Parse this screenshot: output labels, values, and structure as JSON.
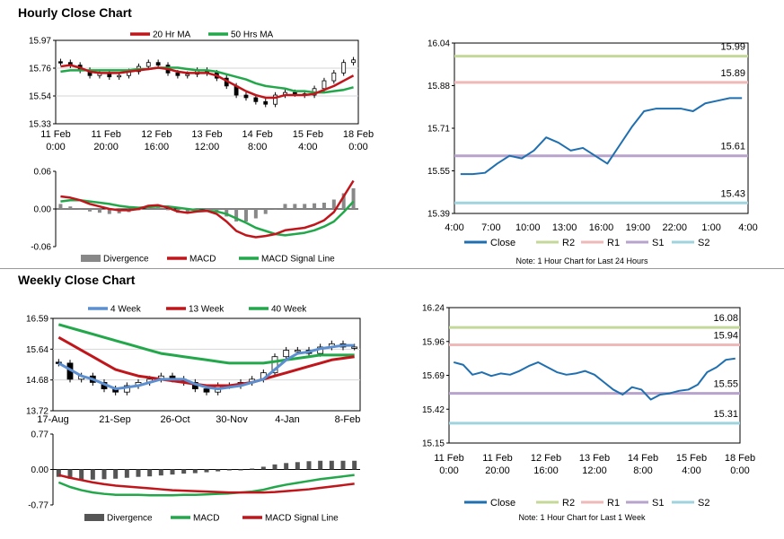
{
  "sections": {
    "hourly_title": "Hourly Close Chart",
    "weekly_title": "Weekly Close Chart"
  },
  "colors": {
    "ma20": "#c0161b",
    "ma50": "#22a84a",
    "close": "#1f6fb0",
    "r2": "#c4d89a",
    "r1": "#efb9b9",
    "s1": "#b7a3cc",
    "s2": "#9fd3de",
    "w4": "#5b8fd0",
    "w13": "#c0161b",
    "w40": "#22a84a",
    "divergence": "#888888"
  },
  "chart_data": [
    {
      "id": "hourly-price",
      "type": "candlestick",
      "legend": [
        "20 Hr MA",
        "50 Hrs MA"
      ],
      "yticks": [
        "15.97",
        "15.76",
        "15.54",
        "15.33"
      ],
      "ylim": [
        15.33,
        15.97
      ],
      "xticks": [
        [
          "11 Feb",
          "0:00"
        ],
        [
          "11 Feb",
          "20:00"
        ],
        [
          "12 Feb",
          "16:00"
        ],
        [
          "13 Feb",
          "12:00"
        ],
        [
          "14 Feb",
          "8:00"
        ],
        [
          "15 Feb",
          "4:00"
        ],
        [
          "18 Feb",
          "0:00"
        ]
      ],
      "close": [
        15.8,
        15.78,
        15.74,
        15.7,
        15.72,
        15.69,
        15.7,
        15.73,
        15.77,
        15.8,
        15.78,
        15.72,
        15.7,
        15.71,
        15.74,
        15.72,
        15.68,
        15.62,
        15.55,
        15.53,
        15.5,
        15.48,
        15.55,
        15.57,
        15.56,
        15.55,
        15.6,
        15.66,
        15.72,
        15.8,
        15.82
      ],
      "ma20": [
        15.77,
        15.78,
        15.76,
        15.73,
        15.72,
        15.72,
        15.72,
        15.73,
        15.74,
        15.75,
        15.76,
        15.75,
        15.73,
        15.72,
        15.72,
        15.72,
        15.7,
        15.66,
        15.62,
        15.58,
        15.55,
        15.53,
        15.53,
        15.55,
        15.55,
        15.55,
        15.56,
        15.59,
        15.62,
        15.66,
        15.7
      ],
      "ma50": [
        15.73,
        15.74,
        15.74,
        15.74,
        15.74,
        15.74,
        15.74,
        15.74,
        15.75,
        15.75,
        15.76,
        15.76,
        15.76,
        15.75,
        15.74,
        15.74,
        15.73,
        15.71,
        15.69,
        15.67,
        15.64,
        15.62,
        15.61,
        15.6,
        15.58,
        15.58,
        15.57,
        15.57,
        15.58,
        15.59,
        15.61
      ]
    },
    {
      "id": "hourly-macd",
      "type": "line+bar",
      "legend": [
        "Divergence",
        "MACD",
        "MACD Signal Line"
      ],
      "yticks": [
        "0.06",
        "0.00",
        "-0.06"
      ],
      "ylim": [
        -0.06,
        0.06
      ],
      "macd": [
        0.02,
        0.018,
        0.014,
        0.008,
        0.004,
        0.0,
        -0.002,
        -0.002,
        0.0,
        0.005,
        0.006,
        0.002,
        -0.004,
        -0.006,
        -0.004,
        -0.003,
        -0.008,
        -0.02,
        -0.035,
        -0.042,
        -0.045,
        -0.043,
        -0.04,
        -0.034,
        -0.032,
        -0.03,
        -0.025,
        -0.018,
        -0.005,
        0.02,
        0.045
      ],
      "signal": [
        0.012,
        0.014,
        0.014,
        0.012,
        0.01,
        0.008,
        0.005,
        0.003,
        0.002,
        0.003,
        0.004,
        0.004,
        0.002,
        0.0,
        -0.002,
        -0.003,
        -0.004,
        -0.008,
        -0.015,
        -0.022,
        -0.03,
        -0.035,
        -0.04,
        -0.042,
        -0.04,
        -0.038,
        -0.034,
        -0.028,
        -0.02,
        -0.005,
        0.012
      ],
      "divergence": [
        0.008,
        0.004,
        0.0,
        -0.004,
        -0.006,
        -0.008,
        -0.007,
        -0.005,
        -0.002,
        0.002,
        0.002,
        -0.002,
        -0.006,
        -0.006,
        -0.002,
        0.0,
        -0.004,
        -0.012,
        -0.02,
        -0.02,
        -0.015,
        -0.008,
        0.0,
        0.008,
        0.008,
        0.008,
        0.009,
        0.01,
        0.015,
        0.025,
        0.033
      ]
    },
    {
      "id": "hourly-24h",
      "type": "line",
      "legend": [
        "Close",
        "R2",
        "R1",
        "S1",
        "S2"
      ],
      "yticks": [
        "16.04",
        "15.88",
        "15.71",
        "15.55",
        "15.39"
      ],
      "ylim": [
        15.39,
        16.04
      ],
      "xticks": [
        "4:00",
        "7:00",
        "10:00",
        "13:00",
        "16:00",
        "19:00",
        "22:00",
        "1:00",
        "4:00"
      ],
      "levels": {
        "R2": 15.99,
        "R1": 15.89,
        "S1": 15.61,
        "S2": 15.43
      },
      "level_labels": [
        "15.99",
        "15.89",
        "15.61",
        "15.43"
      ],
      "close": [
        15.54,
        15.54,
        15.545,
        15.58,
        15.61,
        15.6,
        15.63,
        15.68,
        15.66,
        15.63,
        15.64,
        15.61,
        15.58,
        15.65,
        15.72,
        15.78,
        15.79,
        15.79,
        15.79,
        15.78,
        15.81,
        15.82,
        15.83,
        15.83
      ],
      "note": "Note: 1 Hour Chart for Last 24 Hours"
    },
    {
      "id": "weekly-price",
      "type": "candlestick",
      "legend": [
        "4 Week",
        "13 Week",
        "40 Week"
      ],
      "yticks": [
        "16.59",
        "15.64",
        "14.68",
        "13.72"
      ],
      "ylim": [
        13.72,
        16.59
      ],
      "xticks": [
        "17-Aug",
        "21-Sep",
        "26-Oct",
        "30-Nov",
        "4-Jan",
        "8-Feb"
      ],
      "close": [
        15.2,
        14.7,
        14.8,
        14.6,
        14.4,
        14.3,
        14.5,
        14.6,
        14.7,
        14.8,
        14.7,
        14.6,
        14.4,
        14.3,
        14.5,
        14.5,
        14.6,
        14.7,
        14.9,
        15.4,
        15.6,
        15.6,
        15.5,
        15.7,
        15.8,
        15.7,
        15.7
      ],
      "w4": [
        15.2,
        15.0,
        14.8,
        14.7,
        14.55,
        14.4,
        14.45,
        14.5,
        14.6,
        14.7,
        14.7,
        14.7,
        14.55,
        14.45,
        14.4,
        14.45,
        14.5,
        14.6,
        14.7,
        15.0,
        15.3,
        15.5,
        15.55,
        15.65,
        15.7,
        15.75,
        15.75
      ],
      "w13": [
        16.0,
        15.8,
        15.6,
        15.4,
        15.2,
        15.0,
        14.9,
        14.8,
        14.75,
        14.7,
        14.65,
        14.6,
        14.55,
        14.5,
        14.5,
        14.5,
        14.55,
        14.6,
        14.7,
        14.8,
        14.9,
        15.0,
        15.1,
        15.2,
        15.3,
        15.35,
        15.4
      ],
      "w40": [
        16.4,
        16.3,
        16.2,
        16.1,
        16.0,
        15.9,
        15.8,
        15.7,
        15.6,
        15.5,
        15.45,
        15.4,
        15.35,
        15.3,
        15.25,
        15.2,
        15.2,
        15.2,
        15.2,
        15.25,
        15.3,
        15.35,
        15.4,
        15.45,
        15.45,
        15.45,
        15.45
      ]
    },
    {
      "id": "weekly-macd",
      "type": "line+bar",
      "legend": [
        "Divergence",
        "MACD",
        "MACD Signal Line"
      ],
      "yticks": [
        "0.77",
        "0.00",
        "-0.77"
      ],
      "ylim": [
        -0.77,
        0.77
      ],
      "macd": [
        -0.28,
        -0.38,
        -0.45,
        -0.5,
        -0.53,
        -0.55,
        -0.55,
        -0.55,
        -0.56,
        -0.56,
        -0.56,
        -0.55,
        -0.55,
        -0.54,
        -0.53,
        -0.52,
        -0.5,
        -0.48,
        -0.44,
        -0.38,
        -0.33,
        -0.29,
        -0.25,
        -0.21,
        -0.18,
        -0.15,
        -0.12
      ],
      "signal": [
        -0.12,
        -0.18,
        -0.23,
        -0.28,
        -0.32,
        -0.35,
        -0.37,
        -0.39,
        -0.41,
        -0.43,
        -0.45,
        -0.46,
        -0.47,
        -0.48,
        -0.49,
        -0.5,
        -0.5,
        -0.5,
        -0.5,
        -0.49,
        -0.47,
        -0.45,
        -0.43,
        -0.4,
        -0.37,
        -0.34,
        -0.31
      ],
      "divergence": [
        -0.16,
        -0.2,
        -0.22,
        -0.22,
        -0.21,
        -0.2,
        -0.18,
        -0.16,
        -0.15,
        -0.13,
        -0.11,
        -0.09,
        -0.08,
        -0.06,
        -0.04,
        -0.02,
        0.0,
        0.02,
        0.06,
        0.11,
        0.14,
        0.16,
        0.18,
        0.19,
        0.19,
        0.19,
        0.19
      ]
    },
    {
      "id": "weekly-1w",
      "type": "line",
      "legend": [
        "Close",
        "R2",
        "R1",
        "S1",
        "S2"
      ],
      "yticks": [
        "16.24",
        "15.96",
        "15.69",
        "15.42",
        "15.15"
      ],
      "ylim": [
        15.15,
        16.24
      ],
      "xticks": [
        [
          "11 Feb",
          "0:00"
        ],
        [
          "11 Feb",
          "20:00"
        ],
        [
          "12 Feb",
          "16:00"
        ],
        [
          "13 Feb",
          "12:00"
        ],
        [
          "14 Feb",
          "8:00"
        ],
        [
          "15 Feb",
          "4:00"
        ],
        [
          "18 Feb",
          "0:00"
        ]
      ],
      "levels": {
        "R2": 16.08,
        "R1": 15.94,
        "S1": 15.55,
        "S2": 15.31
      },
      "level_labels": [
        "16.08",
        "15.94",
        "15.55",
        "15.31"
      ],
      "close": [
        15.8,
        15.78,
        15.7,
        15.72,
        15.69,
        15.71,
        15.7,
        15.73,
        15.77,
        15.8,
        15.76,
        15.72,
        15.7,
        15.71,
        15.73,
        15.7,
        15.64,
        15.58,
        15.54,
        15.6,
        15.58,
        15.5,
        15.54,
        15.55,
        15.57,
        15.58,
        15.62,
        15.72,
        15.76,
        15.82,
        15.83
      ],
      "note": "Note: 1 Hour Chart for Last 1 Week"
    }
  ]
}
